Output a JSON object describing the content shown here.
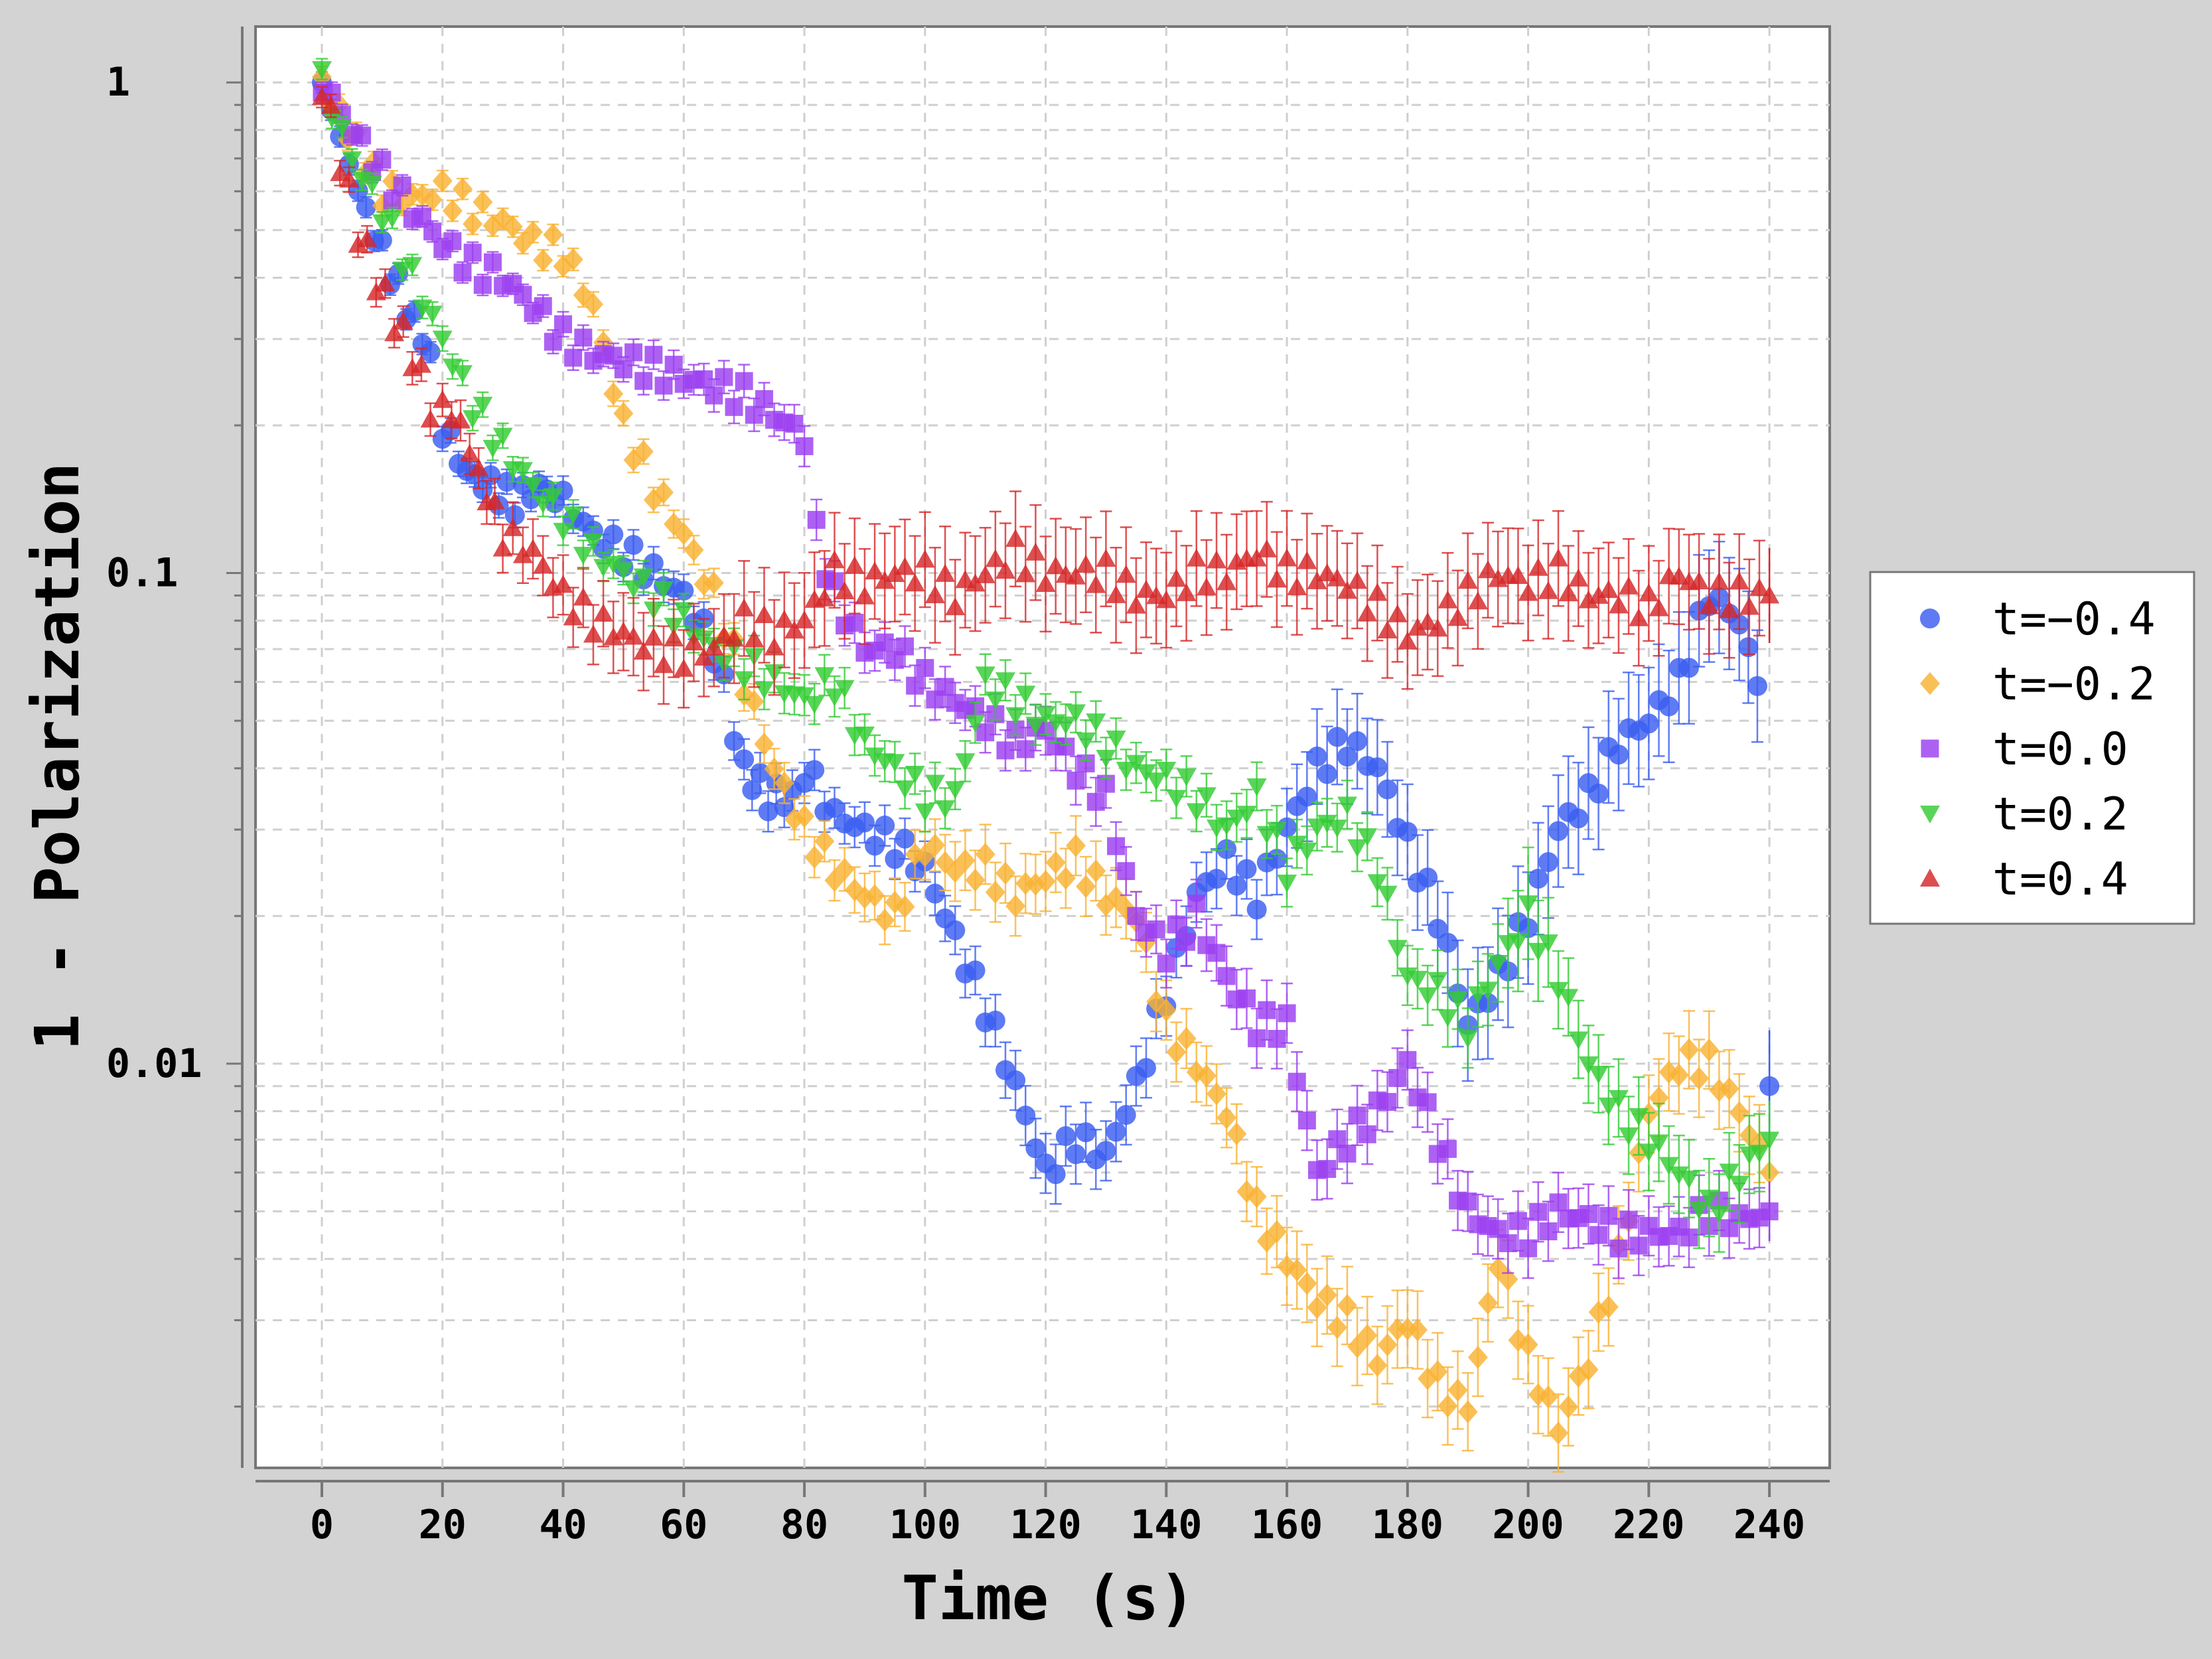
{
  "chart_data": {
    "type": "scatter",
    "title": "",
    "xlabel": "Time (s)",
    "ylabel": "1 - Polarization",
    "xlim": [
      -11,
      250
    ],
    "ylim": [
      0.0015,
      1.3
    ],
    "yscale": "log",
    "grid": true,
    "legend_position": "right",
    "xticks": [
      0,
      20,
      40,
      60,
      80,
      100,
      120,
      140,
      160,
      180,
      200,
      220,
      240
    ],
    "xtick_labels": [
      "0",
      "20",
      "40",
      "60",
      "80",
      "100",
      "120",
      "140",
      "160",
      "180",
      "200",
      "220",
      "240"
    ],
    "yticks": [
      1,
      0.1,
      0.01
    ],
    "ytick_labels": [
      "1",
      "0.1",
      "0.01"
    ],
    "series": [
      {
        "name": "t=−0.4",
        "color": "#3b5ef0",
        "marker": "circle",
        "x": [
          0,
          6,
          10,
          14,
          18,
          20,
          24,
          28,
          32,
          36,
          40,
          45,
          50,
          55,
          60,
          65,
          70,
          74,
          78,
          80,
          85,
          90,
          95,
          100,
          105,
          110,
          115,
          120,
          125,
          130,
          135,
          140,
          145,
          150,
          155,
          160,
          165,
          170,
          175,
          180,
          185,
          190,
          195,
          200,
          205,
          210,
          215,
          220,
          225,
          230,
          235,
          238,
          240
        ],
        "y": [
          1.0,
          0.6,
          0.45,
          0.35,
          0.28,
          0.2,
          0.16,
          0.15,
          0.14,
          0.15,
          0.14,
          0.12,
          0.11,
          0.1,
          0.09,
          0.07,
          0.04,
          0.035,
          0.035,
          0.04,
          0.032,
          0.03,
          0.028,
          0.025,
          0.018,
          0.013,
          0.009,
          0.006,
          0.007,
          0.0065,
          0.009,
          0.014,
          0.022,
          0.026,
          0.022,
          0.03,
          0.04,
          0.045,
          0.04,
          0.028,
          0.02,
          0.012,
          0.015,
          0.02,
          0.03,
          0.035,
          0.045,
          0.05,
          0.06,
          0.09,
          0.08,
          0.06,
          0.009
        ],
        "err": [
          0.05,
          0.05,
          0.05,
          0.05,
          0.05,
          0.06,
          0.06,
          0.06,
          0.06,
          0.06,
          0.07,
          0.07,
          0.07,
          0.08,
          0.08,
          0.08,
          0.1,
          0.1,
          0.1,
          0.1,
          0.1,
          0.1,
          0.1,
          0.1,
          0.12,
          0.12,
          0.15,
          0.15,
          0.15,
          0.15,
          0.15,
          0.15,
          0.15,
          0.15,
          0.15,
          0.2,
          0.25,
          0.25,
          0.25,
          0.25,
          0.25,
          0.3,
          0.3,
          0.3,
          0.3,
          0.3,
          0.3,
          0.3,
          0.3,
          0.3,
          0.3,
          0.3,
          0.3
        ]
      },
      {
        "name": "t=−0.2",
        "color": "#f9b233",
        "marker": "diamond",
        "x": [
          0,
          10,
          15,
          20,
          25,
          30,
          35,
          40,
          45,
          50,
          55,
          60,
          65,
          70,
          75,
          80,
          85,
          90,
          95,
          100,
          105,
          110,
          115,
          120,
          125,
          130,
          135,
          140,
          145,
          150,
          155,
          160,
          165,
          170,
          175,
          180,
          185,
          190,
          195,
          200,
          205,
          210,
          215,
          220,
          225,
          230,
          235,
          240
        ],
        "y": [
          1.0,
          0.6,
          0.58,
          0.6,
          0.55,
          0.52,
          0.47,
          0.45,
          0.35,
          0.2,
          0.15,
          0.12,
          0.09,
          0.06,
          0.04,
          0.03,
          0.025,
          0.022,
          0.02,
          0.028,
          0.025,
          0.025,
          0.022,
          0.024,
          0.026,
          0.022,
          0.02,
          0.012,
          0.01,
          0.008,
          0.005,
          0.004,
          0.0033,
          0.003,
          0.0025,
          0.003,
          0.0022,
          0.002,
          0.004,
          0.0025,
          0.0018,
          0.0025,
          0.004,
          0.008,
          0.01,
          0.01,
          0.008,
          0.006
        ],
        "err": [
          0.05,
          0.05,
          0.05,
          0.05,
          0.05,
          0.05,
          0.05,
          0.05,
          0.06,
          0.06,
          0.06,
          0.07,
          0.07,
          0.08,
          0.1,
          0.1,
          0.1,
          0.12,
          0.12,
          0.12,
          0.15,
          0.15,
          0.15,
          0.15,
          0.15,
          0.15,
          0.15,
          0.15,
          0.15,
          0.15,
          0.15,
          0.2,
          0.2,
          0.2,
          0.2,
          0.2,
          0.2,
          0.2,
          0.2,
          0.2,
          0.2,
          0.2,
          0.2,
          0.2,
          0.2,
          0.2,
          0.2,
          0.2
        ]
      },
      {
        "name": "t=0.0",
        "color": "#9b3ef0",
        "marker": "square",
        "x": [
          0,
          5,
          10,
          15,
          20,
          25,
          30,
          35,
          40,
          45,
          50,
          55,
          60,
          65,
          70,
          75,
          80,
          82,
          85,
          90,
          95,
          100,
          105,
          110,
          115,
          120,
          125,
          130,
          135,
          140,
          145,
          150,
          155,
          160,
          165,
          170,
          175,
          180,
          185,
          190,
          195,
          200,
          205,
          210,
          215,
          220,
          225,
          230,
          235,
          240
        ],
        "y": [
          1.0,
          0.8,
          0.65,
          0.55,
          0.47,
          0.42,
          0.4,
          0.35,
          0.3,
          0.28,
          0.27,
          0.26,
          0.25,
          0.24,
          0.23,
          0.21,
          0.19,
          0.12,
          0.09,
          0.07,
          0.07,
          0.06,
          0.055,
          0.05,
          0.045,
          0.048,
          0.04,
          0.035,
          0.02,
          0.017,
          0.02,
          0.015,
          0.012,
          0.012,
          0.006,
          0.007,
          0.008,
          0.01,
          0.007,
          0.005,
          0.0045,
          0.0045,
          0.005,
          0.0048,
          0.0045,
          0.0045,
          0.0045,
          0.005,
          0.0048,
          0.005
        ],
        "err": [
          0.05,
          0.05,
          0.05,
          0.05,
          0.05,
          0.05,
          0.05,
          0.05,
          0.06,
          0.06,
          0.06,
          0.07,
          0.07,
          0.08,
          0.08,
          0.08,
          0.1,
          0.1,
          0.1,
          0.1,
          0.1,
          0.1,
          0.1,
          0.1,
          0.1,
          0.12,
          0.12,
          0.12,
          0.12,
          0.12,
          0.12,
          0.15,
          0.15,
          0.15,
          0.15,
          0.15,
          0.15,
          0.15,
          0.15,
          0.15,
          0.15,
          0.15,
          0.15,
          0.15,
          0.15,
          0.15,
          0.15,
          0.15,
          0.15,
          0.15
        ]
      },
      {
        "name": "t=0.2",
        "color": "#33cc33",
        "marker": "triangle-down",
        "x": [
          0,
          5,
          10,
          15,
          20,
          25,
          30,
          35,
          40,
          45,
          50,
          55,
          60,
          65,
          70,
          75,
          80,
          85,
          90,
          95,
          100,
          105,
          110,
          115,
          120,
          125,
          130,
          135,
          140,
          145,
          150,
          155,
          160,
          165,
          170,
          175,
          180,
          185,
          190,
          195,
          200,
          205,
          210,
          215,
          220,
          225,
          230,
          235,
          240
        ],
        "y": [
          1.0,
          0.7,
          0.55,
          0.4,
          0.3,
          0.22,
          0.18,
          0.15,
          0.13,
          0.11,
          0.1,
          0.09,
          0.08,
          0.07,
          0.065,
          0.06,
          0.055,
          0.06,
          0.045,
          0.04,
          0.035,
          0.035,
          0.06,
          0.055,
          0.05,
          0.05,
          0.045,
          0.04,
          0.038,
          0.035,
          0.03,
          0.035,
          0.025,
          0.03,
          0.032,
          0.025,
          0.015,
          0.014,
          0.012,
          0.016,
          0.02,
          0.015,
          0.01,
          0.008,
          0.007,
          0.006,
          0.005,
          0.006,
          0.007
        ],
        "err": [
          0.05,
          0.05,
          0.05,
          0.05,
          0.06,
          0.06,
          0.06,
          0.06,
          0.07,
          0.07,
          0.07,
          0.08,
          0.08,
          0.08,
          0.1,
          0.1,
          0.1,
          0.1,
          0.1,
          0.1,
          0.1,
          0.1,
          0.1,
          0.1,
          0.1,
          0.1,
          0.1,
          0.1,
          0.1,
          0.1,
          0.12,
          0.12,
          0.12,
          0.12,
          0.12,
          0.12,
          0.15,
          0.15,
          0.15,
          0.2,
          0.3,
          0.2,
          0.2,
          0.2,
          0.2,
          0.2,
          0.2,
          0.2,
          0.2
        ]
      },
      {
        "name": "t=0.4",
        "color": "#d62728",
        "marker": "triangle-up",
        "x": [
          0,
          3,
          6,
          9,
          12,
          15,
          18,
          20,
          23,
          26,
          30,
          35,
          40,
          45,
          50,
          55,
          60,
          65,
          70,
          75,
          80,
          85,
          90,
          95,
          100,
          105,
          110,
          115,
          120,
          125,
          130,
          135,
          140,
          145,
          150,
          155,
          160,
          165,
          170,
          175,
          180,
          185,
          190,
          195,
          200,
          205,
          210,
          215,
          220,
          225,
          230,
          235,
          240
        ],
        "y": [
          1.0,
          0.7,
          0.5,
          0.4,
          0.33,
          0.28,
          0.22,
          0.22,
          0.2,
          0.16,
          0.12,
          0.11,
          0.09,
          0.08,
          0.075,
          0.07,
          0.068,
          0.07,
          0.08,
          0.075,
          0.08,
          0.1,
          0.095,
          0.1,
          0.1,
          0.09,
          0.1,
          0.11,
          0.1,
          0.1,
          0.1,
          0.09,
          0.09,
          0.1,
          0.1,
          0.11,
          0.1,
          0.1,
          0.095,
          0.085,
          0.075,
          0.08,
          0.09,
          0.1,
          0.095,
          0.1,
          0.09,
          0.09,
          0.085,
          0.1,
          0.09,
          0.09,
          0.09
        ],
        "err": [
          0.05,
          0.06,
          0.06,
          0.07,
          0.07,
          0.08,
          0.08,
          0.08,
          0.1,
          0.1,
          0.12,
          0.15,
          0.15,
          0.15,
          0.2,
          0.2,
          0.2,
          0.2,
          0.25,
          0.25,
          0.25,
          0.25,
          0.25,
          0.25,
          0.25,
          0.25,
          0.25,
          0.25,
          0.25,
          0.25,
          0.25,
          0.25,
          0.25,
          0.25,
          0.25,
          0.25,
          0.25,
          0.25,
          0.25,
          0.25,
          0.25,
          0.25,
          0.25,
          0.25,
          0.25,
          0.25,
          0.25,
          0.25,
          0.25,
          0.25,
          0.25,
          0.25,
          0.25
        ]
      }
    ]
  }
}
